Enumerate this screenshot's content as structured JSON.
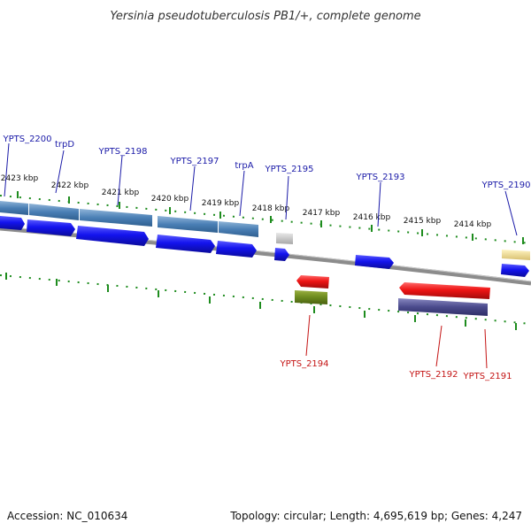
{
  "title": "Yersinia pseudotuberculosis PB1/+, complete genome",
  "footer": {
    "accession": "Accession: NC_010634",
    "summary": "Topology: circular; Length: 4,695,619 bp; Genes: 4,247"
  },
  "colors": {
    "background": "#ffffff",
    "backbone": "#8c8c8c",
    "tick": "#1e8c1e",
    "cds_fwd": "#1010e6",
    "cds_rev": "#e61010",
    "gene_fwd_bar": "#4a7fb5",
    "label_fwd": "#1a1aa8",
    "label_rev": "#c41414"
  },
  "kbp_labels": [
    "2423 kbp",
    "2422 kbp",
    "2421 kbp",
    "2420 kbp",
    "2419 kbp",
    "2418 kbp",
    "2417 kbp",
    "2416 kbp",
    "2415 kbp",
    "2414 kbp"
  ],
  "genes_forward": [
    {
      "label": "YPTS_2200",
      "strand": "+"
    },
    {
      "label": "trpD",
      "strand": "+"
    },
    {
      "label": "YPTS_2198",
      "strand": "+"
    },
    {
      "label": "YPTS_2197",
      "strand": "+"
    },
    {
      "label": "trpA",
      "strand": "+"
    },
    {
      "label": "YPTS_2195",
      "strand": "+"
    },
    {
      "label": "YPTS_2193",
      "strand": "+"
    },
    {
      "label": "YPTS_2190",
      "strand": "+"
    }
  ],
  "genes_reverse": [
    {
      "label": "YPTS_2194",
      "strand": "-"
    },
    {
      "label": "YPTS_2192",
      "strand": "-"
    },
    {
      "label": "YPTS_2191",
      "strand": "-"
    }
  ]
}
